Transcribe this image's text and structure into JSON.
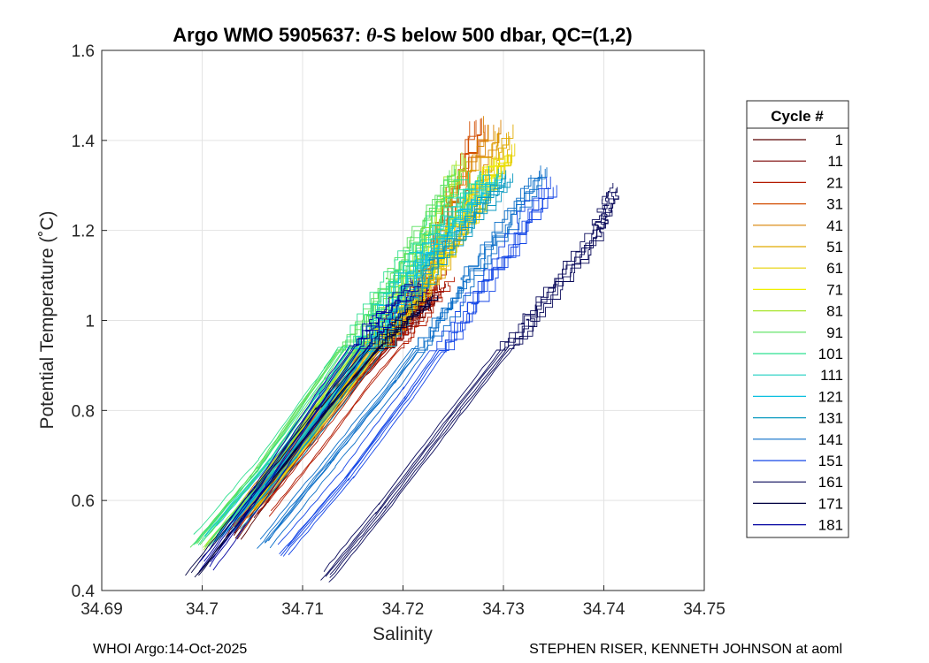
{
  "chart_data": {
    "type": "line",
    "title_parts": [
      "Argo WMO 5905637: ",
      "θ",
      "-S below 500 dbar,  QC=(1,2)"
    ],
    "xlabel": "Salinity",
    "ylabel": "Potential Temperature (˚C)",
    "xlim": [
      34.69,
      34.75
    ],
    "ylim": [
      0.4,
      1.6
    ],
    "xticks": [
      34.69,
      34.7,
      34.71,
      34.72,
      34.73,
      34.74,
      34.75
    ],
    "xtick_labels": [
      "34.69",
      "34.7",
      "34.71",
      "34.72",
      "34.73",
      "34.74",
      "34.75"
    ],
    "yticks": [
      0.4,
      0.6,
      0.8,
      1.0,
      1.2,
      1.4,
      1.6
    ],
    "ytick_labels": [
      "0.4",
      "0.6",
      "0.8",
      "1",
      "1.2",
      "1.4",
      "1.6"
    ],
    "grid": true,
    "legend_title": "Cycle #",
    "legend_position": "right-outside",
    "series": [
      {
        "name": "1",
        "color": "#5a0000",
        "x": [
          34.703,
          34.708,
          34.7135,
          34.718,
          34.7225
        ],
        "y": [
          0.52,
          0.68,
          0.84,
          0.96,
          1.05
        ]
      },
      {
        "name": "11",
        "color": "#7a0000",
        "x": [
          34.7045,
          34.7095,
          34.715,
          34.72,
          34.7235
        ],
        "y": [
          0.56,
          0.7,
          0.86,
          0.98,
          1.08
        ]
      },
      {
        "name": "21",
        "color": "#b31a00",
        "x": [
          34.706,
          34.711,
          34.716,
          34.7205,
          34.724
        ],
        "y": [
          0.58,
          0.72,
          0.87,
          0.99,
          1.1
        ]
      },
      {
        "name": "31",
        "color": "#d24d00",
        "x": [
          34.7035,
          34.709,
          34.715,
          34.7215,
          34.7275
        ],
        "y": [
          0.55,
          0.72,
          0.9,
          1.08,
          1.45
        ]
      },
      {
        "name": "41",
        "color": "#d98200",
        "x": [
          34.704,
          34.71,
          34.716,
          34.7225,
          34.729
        ],
        "y": [
          0.57,
          0.74,
          0.92,
          1.1,
          1.44
        ]
      },
      {
        "name": "51",
        "color": "#e0aa00",
        "x": [
          34.7045,
          34.7105,
          34.7165,
          34.723,
          34.73
        ],
        "y": [
          0.58,
          0.75,
          0.93,
          1.12,
          1.42
        ]
      },
      {
        "name": "61",
        "color": "#e6d000",
        "x": [
          34.705,
          34.711,
          34.717,
          34.7235,
          34.7305
        ],
        "y": [
          0.59,
          0.76,
          0.94,
          1.13,
          1.38
        ]
      },
      {
        "name": "71",
        "color": "#f0f000",
        "x": [
          34.704,
          34.71,
          34.7165,
          34.723,
          34.7295
        ],
        "y": [
          0.57,
          0.75,
          0.94,
          1.14,
          1.36
        ]
      },
      {
        "name": "81",
        "color": "#a8e62e",
        "x": [
          34.7,
          34.706,
          34.7125,
          34.7195,
          34.7255
        ],
        "y": [
          0.5,
          0.66,
          0.86,
          1.08,
          1.36
        ]
      },
      {
        "name": "91",
        "color": "#55e05a",
        "x": [
          34.6995,
          34.7055,
          34.712,
          34.719,
          34.725
        ],
        "y": [
          0.5,
          0.66,
          0.87,
          1.1,
          1.33
        ]
      },
      {
        "name": "101",
        "color": "#2ee090",
        "x": [
          34.7,
          34.7065,
          34.713,
          34.72,
          34.727
        ],
        "y": [
          0.51,
          0.68,
          0.88,
          1.12,
          1.32
        ]
      },
      {
        "name": "111",
        "color": "#1ecfc0",
        "x": [
          34.701,
          34.7075,
          34.714,
          34.721,
          34.7285
        ],
        "y": [
          0.52,
          0.69,
          0.89,
          1.13,
          1.33
        ]
      },
      {
        "name": "121",
        "color": "#0cc0e0",
        "x": [
          34.702,
          34.7085,
          34.715,
          34.722,
          34.7295
        ],
        "y": [
          0.53,
          0.7,
          0.9,
          1.14,
          1.33
        ]
      },
      {
        "name": "131",
        "color": "#0a9ac0",
        "x": [
          34.703,
          34.7095,
          34.716,
          34.723,
          34.7305
        ],
        "y": [
          0.53,
          0.7,
          0.89,
          1.12,
          1.32
        ]
      },
      {
        "name": "141",
        "color": "#0a6ec8",
        "x": [
          34.706,
          34.7125,
          34.719,
          34.726,
          34.7335
        ],
        "y": [
          0.5,
          0.68,
          0.86,
          1.08,
          1.33
        ]
      },
      {
        "name": "151",
        "color": "#1446e6",
        "x": [
          34.708,
          34.7145,
          34.7205,
          34.727,
          34.7345
        ],
        "y": [
          0.49,
          0.66,
          0.84,
          1.05,
          1.31
        ]
      },
      {
        "name": "161",
        "color": "#0a0a5a",
        "x": [
          34.712,
          34.7175,
          34.725,
          34.732,
          34.739,
          34.7405
        ],
        "y": [
          0.43,
          0.58,
          0.8,
          1.0,
          1.2,
          1.29
        ]
      },
      {
        "name": "171",
        "color": "#000040",
        "x": [
          34.699,
          34.705,
          34.712,
          34.718,
          34.7225
        ],
        "y": [
          0.43,
          0.6,
          0.8,
          0.96,
          1.05
        ]
      },
      {
        "name": "181",
        "color": "#0000a0",
        "x": [
          34.7005,
          34.706,
          34.712,
          34.717,
          34.7215
        ],
        "y": [
          0.45,
          0.62,
          0.82,
          0.98,
          1.08
        ]
      }
    ]
  },
  "footer": {
    "left": "WHOI Argo:14-Oct-2025",
    "right": "STEPHEN RISER, KENNETH JOHNSON at aoml"
  }
}
